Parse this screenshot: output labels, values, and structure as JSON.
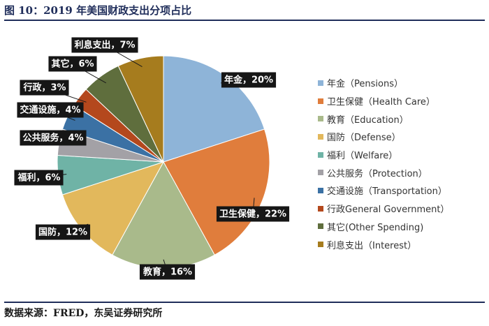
{
  "figure": {
    "title": "图 10：2019 年美国财政支出分项占比",
    "source": "数据来源：FRED，东吴证券研究所"
  },
  "chart_data": {
    "type": "pie",
    "start_angle_deg": 0,
    "direction": "clockwise",
    "legend_position": "right",
    "slices": [
      {
        "legend": "年金（Pensions）",
        "label": "年金，20%",
        "value": 20,
        "color": "#8eb4d8"
      },
      {
        "legend": "卫生保健（Health Care）",
        "label": "卫生保健，22%",
        "value": 22,
        "color": "#e07d3c"
      },
      {
        "legend": "教育（Education）",
        "label": "教育，16%",
        "value": 16,
        "color": "#a9ba8b"
      },
      {
        "legend": "国防（Defense）",
        "label": "国防，12%",
        "value": 12,
        "color": "#e2b85c"
      },
      {
        "legend": "福利（Welfare）",
        "label": "福利，6%",
        "value": 6,
        "color": "#6fb3a6"
      },
      {
        "legend": "公共服务（Protection）",
        "label": "公共服务，4%",
        "value": 4,
        "color": "#a3a1a6"
      },
      {
        "legend": "交通设施（Transportation）",
        "label": "交通设施，4%",
        "value": 4,
        "color": "#3b71a4"
      },
      {
        "legend": "行政General Government）",
        "label": "行政，3%",
        "value": 3,
        "color": "#b4481d"
      },
      {
        "legend": "其它(Other Spending)",
        "label": "其它，6%",
        "value": 6,
        "color": "#5f6e3d"
      },
      {
        "legend": "利息支出（Interest）",
        "label": "利息支出，7%",
        "value": 7,
        "color": "#a67c1e"
      }
    ]
  }
}
